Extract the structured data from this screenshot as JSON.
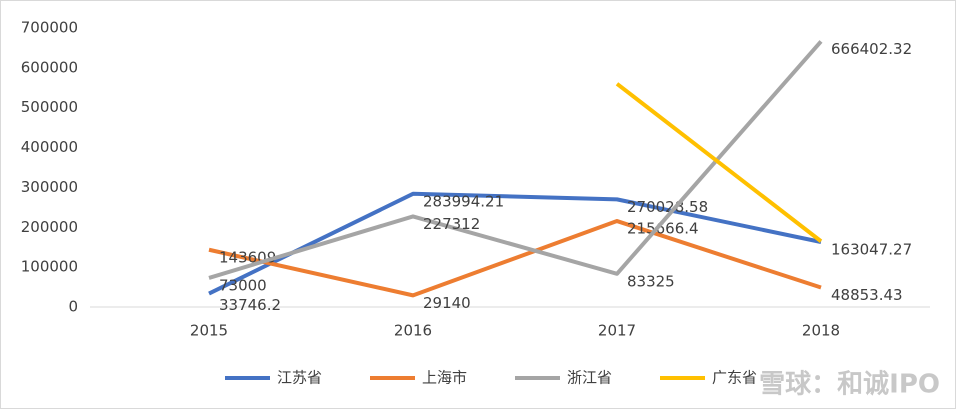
{
  "chart_data": {
    "type": "line",
    "categories": [
      "2015",
      "2016",
      "2017",
      "2018"
    ],
    "series": [
      {
        "name": "江苏省",
        "color": "#4472c4",
        "values": [
          33746.2,
          283994.21,
          270028.58,
          163047.27
        ]
      },
      {
        "name": "上海市",
        "color": "#ed7d31",
        "values": [
          143609,
          29140,
          215666.4,
          48853.43
        ]
      },
      {
        "name": "浙江省",
        "color": "#a5a5a5",
        "values": [
          73000,
          227312,
          83325,
          666402.32
        ]
      },
      {
        "name": "广东省",
        "color": "#ffc000",
        "values": [
          null,
          null,
          560000,
          165000
        ]
      }
    ],
    "ylim": [
      0,
      700000
    ],
    "yticks": [
      0,
      100000,
      200000,
      300000,
      400000,
      500000,
      600000,
      700000
    ],
    "grid": false,
    "legend": "bottom",
    "data_labels": [
      true,
      true,
      true,
      false
    ]
  },
  "watermark": "雪球：和诚IPO"
}
